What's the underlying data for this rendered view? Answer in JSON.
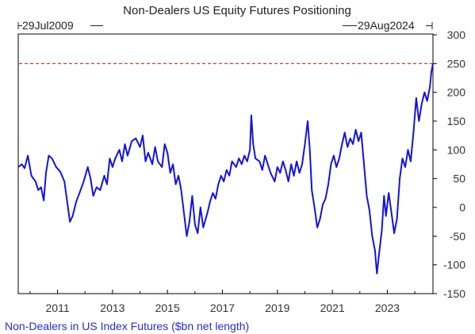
{
  "chart_data": {
    "type": "line",
    "title": "Non-Dealers US Equity Futures Positioning",
    "date_range": {
      "start_label": "29Jul2009",
      "end_label": "29Aug2024",
      "start": 2009.57,
      "end": 2024.66
    },
    "legend": {
      "placement": "bottom-left",
      "entries": [
        "Non-Dealers in US Index Futures ($bn net length)"
      ]
    },
    "y_axis": {
      "position": "right",
      "min": -150,
      "max": 300,
      "ticks": [
        "300",
        "250",
        "200",
        "150",
        "100",
        "50",
        "0",
        "-50",
        "-100",
        "-150"
      ]
    },
    "x_axis": {
      "min": 2009.57,
      "max": 2024.66,
      "ticks": [
        {
          "x": 2011,
          "label": "2011"
        },
        {
          "x": 2013,
          "label": "2013"
        },
        {
          "x": 2015,
          "label": "2015"
        },
        {
          "x": 2017,
          "label": "2017"
        },
        {
          "x": 2019,
          "label": "2019"
        },
        {
          "x": 2021,
          "label": "2021"
        },
        {
          "x": 2023,
          "label": "2023"
        }
      ]
    },
    "reference_line": {
      "y": 250,
      "style": "dashed",
      "color": "#cc2222"
    },
    "grid": false,
    "series": [
      {
        "color": "#1414d8",
        "points": [
          [
            2009.57,
            70
          ],
          [
            2009.7,
            75
          ],
          [
            2009.8,
            68
          ],
          [
            2009.92,
            90
          ],
          [
            2010.05,
            55
          ],
          [
            2010.2,
            45
          ],
          [
            2010.3,
            30
          ],
          [
            2010.4,
            35
          ],
          [
            2010.5,
            12
          ],
          [
            2010.58,
            60
          ],
          [
            2010.68,
            90
          ],
          [
            2010.8,
            85
          ],
          [
            2010.95,
            70
          ],
          [
            2011.1,
            62
          ],
          [
            2011.25,
            45
          ],
          [
            2011.35,
            10
          ],
          [
            2011.45,
            -25
          ],
          [
            2011.55,
            -15
          ],
          [
            2011.68,
            10
          ],
          [
            2011.8,
            25
          ],
          [
            2011.95,
            45
          ],
          [
            2012.1,
            70
          ],
          [
            2012.2,
            50
          ],
          [
            2012.3,
            20
          ],
          [
            2012.42,
            35
          ],
          [
            2012.55,
            30
          ],
          [
            2012.7,
            55
          ],
          [
            2012.8,
            40
          ],
          [
            2012.9,
            85
          ],
          [
            2013.0,
            70
          ],
          [
            2013.1,
            85
          ],
          [
            2013.25,
            100
          ],
          [
            2013.35,
            80
          ],
          [
            2013.45,
            110
          ],
          [
            2013.55,
            90
          ],
          [
            2013.7,
            115
          ],
          [
            2013.85,
            120
          ],
          [
            2014.0,
            105
          ],
          [
            2014.1,
            125
          ],
          [
            2014.2,
            80
          ],
          [
            2014.3,
            95
          ],
          [
            2014.45,
            75
          ],
          [
            2014.55,
            105
          ],
          [
            2014.65,
            80
          ],
          [
            2014.8,
            70
          ],
          [
            2014.9,
            110
          ],
          [
            2015.0,
            95
          ],
          [
            2015.1,
            60
          ],
          [
            2015.2,
            75
          ],
          [
            2015.3,
            40
          ],
          [
            2015.4,
            55
          ],
          [
            2015.5,
            30
          ],
          [
            2015.6,
            -10
          ],
          [
            2015.7,
            -50
          ],
          [
            2015.8,
            -25
          ],
          [
            2015.9,
            20
          ],
          [
            2016.0,
            -30
          ],
          [
            2016.1,
            -45
          ],
          [
            2016.2,
            0
          ],
          [
            2016.3,
            -35
          ],
          [
            2016.45,
            -10
          ],
          [
            2016.55,
            10
          ],
          [
            2016.65,
            25
          ],
          [
            2016.75,
            15
          ],
          [
            2016.85,
            40
          ],
          [
            2016.95,
            55
          ],
          [
            2017.05,
            45
          ],
          [
            2017.15,
            65
          ],
          [
            2017.25,
            55
          ],
          [
            2017.35,
            80
          ],
          [
            2017.5,
            70
          ],
          [
            2017.6,
            85
          ],
          [
            2017.7,
            75
          ],
          [
            2017.8,
            90
          ],
          [
            2017.9,
            80
          ],
          [
            2018.0,
            100
          ],
          [
            2018.05,
            160
          ],
          [
            2018.12,
            110
          ],
          [
            2018.2,
            85
          ],
          [
            2018.35,
            80
          ],
          [
            2018.45,
            65
          ],
          [
            2018.55,
            90
          ],
          [
            2018.65,
            75
          ],
          [
            2018.75,
            60
          ],
          [
            2018.9,
            45
          ],
          [
            2019.0,
            70
          ],
          [
            2019.1,
            60
          ],
          [
            2019.2,
            80
          ],
          [
            2019.3,
            65
          ],
          [
            2019.4,
            45
          ],
          [
            2019.5,
            75
          ],
          [
            2019.6,
            55
          ],
          [
            2019.7,
            80
          ],
          [
            2019.8,
            60
          ],
          [
            2019.9,
            75
          ],
          [
            2020.0,
            110
          ],
          [
            2020.1,
            150
          ],
          [
            2020.18,
            100
          ],
          [
            2020.25,
            30
          ],
          [
            2020.35,
            0
          ],
          [
            2020.45,
            -35
          ],
          [
            2020.55,
            -20
          ],
          [
            2020.65,
            5
          ],
          [
            2020.75,
            15
          ],
          [
            2020.85,
            40
          ],
          [
            2020.95,
            75
          ],
          [
            2021.05,
            90
          ],
          [
            2021.15,
            70
          ],
          [
            2021.25,
            85
          ],
          [
            2021.35,
            110
          ],
          [
            2021.45,
            130
          ],
          [
            2021.55,
            105
          ],
          [
            2021.65,
            120
          ],
          [
            2021.75,
            110
          ],
          [
            2021.85,
            135
          ],
          [
            2021.95,
            115
          ],
          [
            2022.05,
            130
          ],
          [
            2022.15,
            75
          ],
          [
            2022.25,
            20
          ],
          [
            2022.35,
            -5
          ],
          [
            2022.45,
            -50
          ],
          [
            2022.55,
            -75
          ],
          [
            2022.62,
            -115
          ],
          [
            2022.7,
            -80
          ],
          [
            2022.8,
            -40
          ],
          [
            2022.88,
            20
          ],
          [
            2022.95,
            -15
          ],
          [
            2023.05,
            25
          ],
          [
            2023.15,
            -10
          ],
          [
            2023.25,
            -45
          ],
          [
            2023.35,
            -20
          ],
          [
            2023.45,
            50
          ],
          [
            2023.55,
            85
          ],
          [
            2023.65,
            70
          ],
          [
            2023.75,
            100
          ],
          [
            2023.85,
            80
          ],
          [
            2023.95,
            130
          ],
          [
            2024.05,
            190
          ],
          [
            2024.15,
            150
          ],
          [
            2024.25,
            180
          ],
          [
            2024.35,
            200
          ],
          [
            2024.45,
            185
          ],
          [
            2024.55,
            210
          ],
          [
            2024.6,
            235
          ],
          [
            2024.66,
            250
          ]
        ]
      }
    ]
  }
}
